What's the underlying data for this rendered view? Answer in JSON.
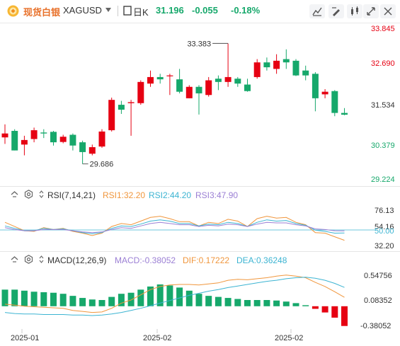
{
  "header": {
    "brand": "现货白银",
    "symbol": "XAGUSD",
    "period": "日K",
    "price": "31.196",
    "change": "-0.055",
    "change_pct": "-0.18%",
    "color_up": "#e60012",
    "color_down": "#16a86b",
    "toolbar_icons": [
      "indicator-settings-icon",
      "draw-tool-icon",
      "compare-icon",
      "fullscreen-icon",
      "settings-icon"
    ]
  },
  "main": {
    "y_ticks": [
      "33.845",
      "32.690",
      "31.534",
      "30.379",
      "29.224"
    ],
    "high_label": "33.383",
    "low_label": "29.686",
    "x_labels": [
      "2025-01",
      "2025-02",
      "2025-02"
    ]
  },
  "rsi": {
    "name": "RSI(7,14,21)",
    "rsi1": "RSI1:32.20",
    "rsi2": "RSI2:44.20",
    "rsi3": "RSI3:47.90",
    "y_ticks": [
      "76.13",
      "54.16",
      "50.00",
      "32.20"
    ],
    "colors": {
      "rsi1": "#f0963c",
      "rsi2": "#3cb4d2",
      "rsi3": "#9b7fd4"
    }
  },
  "macd": {
    "name": "MACD(12,26,9)",
    "macd": "MACD:-0.38052",
    "dif": "DIF:0.17222",
    "dea": "DEA:0.36248",
    "y_ticks": [
      "0.54756",
      "0.08352",
      "-0.38052"
    ],
    "colors": {
      "macd": "#9b7fd4",
      "dif": "#f0963c",
      "dea": "#3cb4d2"
    }
  },
  "chart_data": [
    {
      "type": "candlestick",
      "ylim": [
        29.224,
        33.845
      ],
      "candles": [
        {
          "o": 30.5,
          "h": 30.9,
          "l": 30.3,
          "c": 30.62
        },
        {
          "o": 30.7,
          "h": 30.75,
          "l": 30.1,
          "c": 30.1
        },
        {
          "o": 30.28,
          "h": 30.55,
          "l": 29.95,
          "c": 30.42
        },
        {
          "o": 30.45,
          "h": 30.8,
          "l": 30.35,
          "c": 30.72
        },
        {
          "o": 30.65,
          "h": 30.75,
          "l": 30.48,
          "c": 30.62
        },
        {
          "o": 30.67,
          "h": 30.7,
          "l": 30.25,
          "c": 30.35
        },
        {
          "o": 30.36,
          "h": 30.58,
          "l": 30.32,
          "c": 30.52
        },
        {
          "o": 30.58,
          "h": 30.62,
          "l": 30.1,
          "c": 30.25
        },
        {
          "o": 30.35,
          "h": 30.4,
          "l": 29.69,
          "c": 30.05
        },
        {
          "o": 30.0,
          "h": 30.28,
          "l": 29.95,
          "c": 30.2
        },
        {
          "o": 30.22,
          "h": 30.75,
          "l": 30.18,
          "c": 30.68
        },
        {
          "o": 30.72,
          "h": 31.72,
          "l": 30.68,
          "c": 31.65
        },
        {
          "o": 31.5,
          "h": 31.62,
          "l": 31.22,
          "c": 31.35
        },
        {
          "o": 31.55,
          "h": 31.65,
          "l": 30.55,
          "c": 31.58
        },
        {
          "o": 31.55,
          "h": 32.25,
          "l": 31.5,
          "c": 32.2
        },
        {
          "o": 32.15,
          "h": 32.55,
          "l": 32.05,
          "c": 32.35
        },
        {
          "o": 32.35,
          "h": 32.45,
          "l": 32.15,
          "c": 32.28
        },
        {
          "o": 32.4,
          "h": 32.45,
          "l": 31.8,
          "c": 32.4
        },
        {
          "o": 32.28,
          "h": 32.6,
          "l": 31.85,
          "c": 31.9
        },
        {
          "o": 31.7,
          "h": 32.1,
          "l": 31.7,
          "c": 32.05
        },
        {
          "o": 32.05,
          "h": 32.1,
          "l": 31.2,
          "c": 31.85
        },
        {
          "o": 31.8,
          "h": 32.35,
          "l": 31.75,
          "c": 32.25
        },
        {
          "o": 32.3,
          "h": 32.4,
          "l": 31.95,
          "c": 32.2
        },
        {
          "o": 32.2,
          "h": 33.38,
          "l": 32.05,
          "c": 32.35
        },
        {
          "o": 32.3,
          "h": 32.35,
          "l": 32.05,
          "c": 32.15
        },
        {
          "o": 32.12,
          "h": 32.3,
          "l": 31.9,
          "c": 31.92
        },
        {
          "o": 32.35,
          "h": 32.9,
          "l": 32.3,
          "c": 32.8
        },
        {
          "o": 32.8,
          "h": 32.95,
          "l": 32.55,
          "c": 32.65
        },
        {
          "o": 32.6,
          "h": 33.05,
          "l": 32.45,
          "c": 32.85
        },
        {
          "o": 32.9,
          "h": 33.2,
          "l": 32.6,
          "c": 32.8
        },
        {
          "o": 32.85,
          "h": 32.9,
          "l": 32.38,
          "c": 32.4
        },
        {
          "o": 32.55,
          "h": 32.7,
          "l": 32.25,
          "c": 32.4
        },
        {
          "o": 32.45,
          "h": 32.5,
          "l": 31.3,
          "c": 31.7
        },
        {
          "o": 31.82,
          "h": 31.98,
          "l": 31.7,
          "c": 31.9
        },
        {
          "o": 31.92,
          "h": 31.95,
          "l": 31.15,
          "c": 31.25
        },
        {
          "o": 31.25,
          "h": 31.4,
          "l": 31.18,
          "c": 31.196
        }
      ],
      "high_mark": 33.383,
      "low_mark": 29.686
    },
    {
      "type": "line",
      "name": "RSI",
      "ylim": [
        20,
        95
      ],
      "series": [
        {
          "name": "RSI1",
          "values": [
            62,
            55,
            48,
            47,
            53,
            50,
            52,
            47,
            44,
            40,
            44,
            55,
            60,
            58,
            64,
            70,
            72,
            68,
            63,
            63,
            56,
            62,
            60,
            67,
            64,
            55,
            68,
            72,
            69,
            70,
            62,
            58,
            45,
            44,
            38,
            32.2
          ]
        },
        {
          "name": "RSI2",
          "values": [
            56,
            52,
            48,
            48,
            52,
            50,
            51,
            48,
            45,
            43,
            45,
            52,
            56,
            55,
            59,
            64,
            66,
            64,
            60,
            60,
            56,
            59,
            58,
            62,
            60,
            55,
            62,
            66,
            64,
            65,
            60,
            57,
            49,
            47,
            44,
            44.2
          ]
        },
        {
          "name": "RSI3",
          "values": [
            53,
            50,
            48,
            48,
            50,
            50,
            50,
            48,
            46,
            45,
            46,
            50,
            53,
            52,
            56,
            60,
            62,
            60,
            58,
            58,
            55,
            57,
            56,
            59,
            58,
            55,
            59,
            62,
            61,
            61,
            58,
            56,
            51,
            50,
            48,
            47.9
          ]
        }
      ]
    },
    {
      "type": "bar",
      "name": "MACD",
      "ylim": [
        -0.48,
        0.72
      ],
      "macd": [
        0.32,
        0.32,
        0.3,
        0.28,
        0.27,
        0.26,
        0.24,
        0.2,
        0.16,
        0.13,
        0.12,
        0.18,
        0.24,
        0.26,
        0.32,
        0.38,
        0.42,
        0.4,
        0.36,
        0.3,
        0.24,
        0.2,
        0.18,
        0.16,
        0.14,
        0.12,
        0.12,
        0.12,
        0.11,
        0.09,
        0.06,
        0.02,
        -0.05,
        -0.12,
        -0.22,
        -0.38052
      ],
      "dif": [
        0.04,
        0.02,
        0.0,
        -0.01,
        -0.02,
        -0.03,
        -0.04,
        -0.08,
        -0.1,
        -0.12,
        -0.11,
        -0.04,
        0.06,
        0.12,
        0.22,
        0.32,
        0.38,
        0.41,
        0.42,
        0.42,
        0.41,
        0.43,
        0.45,
        0.5,
        0.52,
        0.51,
        0.53,
        0.55,
        0.58,
        0.6,
        0.58,
        0.55,
        0.46,
        0.38,
        0.28,
        0.17222
      ],
      "dea": [
        -0.12,
        -0.14,
        -0.15,
        -0.15,
        -0.16,
        -0.16,
        -0.16,
        -0.17,
        -0.17,
        -0.18,
        -0.17,
        -0.15,
        -0.12,
        -0.08,
        -0.04,
        0.01,
        0.06,
        0.11,
        0.16,
        0.21,
        0.25,
        0.29,
        0.32,
        0.36,
        0.39,
        0.42,
        0.45,
        0.48,
        0.5,
        0.53,
        0.55,
        0.56,
        0.54,
        0.5,
        0.44,
        0.36248
      ]
    }
  ]
}
